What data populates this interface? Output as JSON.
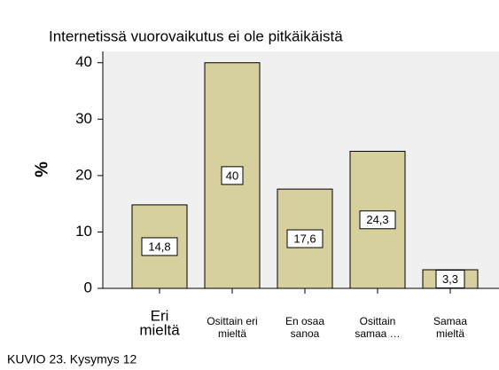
{
  "chart_data": {
    "type": "bar",
    "title": "Internetissä vuorovaikutus ei ole pitkäikäistä",
    "y_label": "%",
    "categories": [
      [
        "Eri",
        "mieltä"
      ],
      [
        "Osittain eri",
        "mieltä"
      ],
      [
        "En osaa",
        "sanoa"
      ],
      [
        "Osittain",
        "samaa …"
      ],
      [
        "Samaa",
        "mieltä"
      ]
    ],
    "values": [
      14.8,
      40,
      17.6,
      24.3,
      3.3
    ],
    "value_labels": [
      "14,8",
      "40",
      "17,6",
      "24,3",
      "3,3"
    ],
    "color": "#d6cf9e",
    "ylim": [
      0,
      42
    ],
    "yticks": [
      0,
      10,
      20,
      30,
      40
    ],
    "grid": false,
    "caption": "KUVIO 23. Kysymys 12"
  }
}
